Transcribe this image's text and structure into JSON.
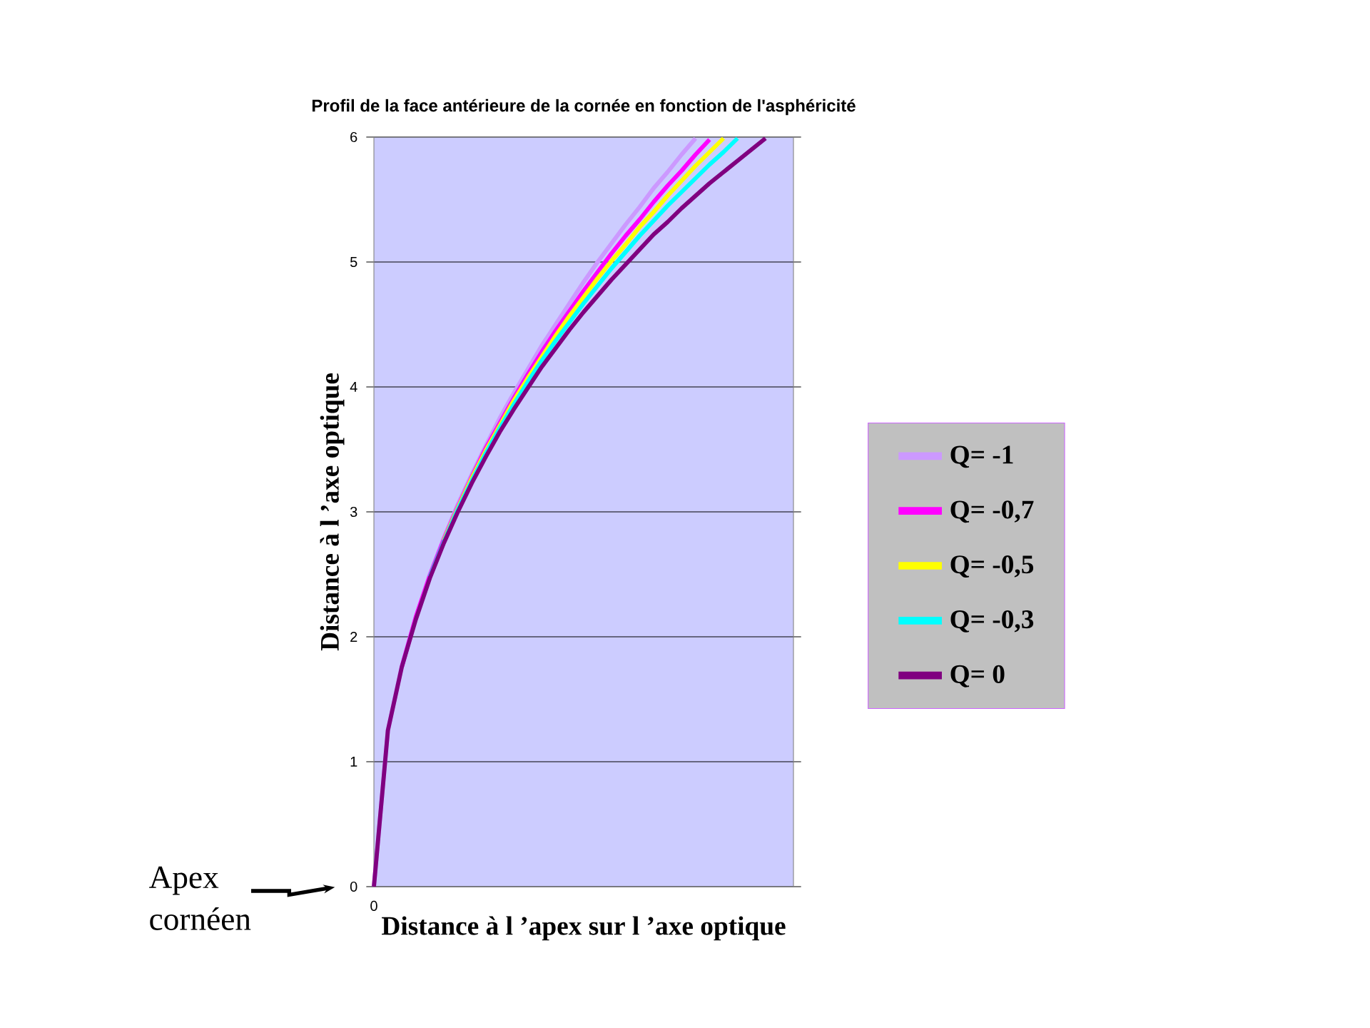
{
  "chart_data": {
    "type": "line",
    "title": "Profil de la face antérieure de la cornée en fonction de l'asphéricité",
    "xlabel": "Distance à l ’apex sur l ’axe optique",
    "ylabel": "Distance à l ’axe optique",
    "categories": [
      null,
      null,
      null,
      null,
      null,
      null,
      null,
      null,
      null,
      null,
      null,
      null,
      null,
      null,
      null,
      null,
      null,
      null,
      null,
      null,
      null,
      null,
      null,
      null,
      null,
      null,
      null,
      null,
      null,
      null,
      null
    ],
    "ylim": [
      0,
      6
    ],
    "yticks": [
      0,
      1,
      2,
      3,
      4,
      5,
      6
    ],
    "grid": "y",
    "legend": "right",
    "annotations": [
      "Apex cornéen",
      "0"
    ],
    "series": [
      {
        "name": "Q= -1",
        "color": "#cc99ff",
        "values": [
          0,
          1.25,
          1.77,
          2.16,
          2.5,
          2.79,
          3.06,
          3.3,
          3.53,
          3.75,
          3.95,
          4.14,
          4.33,
          4.5,
          4.67,
          4.84,
          5.0,
          5.15,
          5.3,
          5.44,
          5.59,
          5.72,
          5.86,
          5.99,
          null,
          null,
          null,
          null,
          null,
          null,
          null
        ]
      },
      {
        "name": "Q= -0,7",
        "color": "#ff00ff",
        "values": [
          null,
          null,
          1.76,
          2.16,
          2.49,
          2.78,
          3.04,
          3.28,
          3.51,
          3.71,
          3.91,
          4.1,
          4.28,
          4.45,
          4.61,
          4.77,
          4.92,
          5.07,
          5.21,
          5.34,
          5.48,
          5.61,
          5.73,
          5.86,
          5.98,
          null,
          null,
          null,
          null,
          null,
          null
        ]
      },
      {
        "name": "Q= -0,5",
        "color": "#ffff00",
        "values": [
          null,
          null,
          null,
          null,
          null,
          2.77,
          3.03,
          3.27,
          3.49,
          3.69,
          3.89,
          4.07,
          4.24,
          4.41,
          4.57,
          4.72,
          4.87,
          5.01,
          5.14,
          5.28,
          5.4,
          5.53,
          5.65,
          5.77,
          5.88,
          5.99,
          null,
          null,
          null,
          null,
          null
        ]
      },
      {
        "name": "Q= -0,3",
        "color": "#00ffff",
        "values": [
          null,
          null,
          null,
          null,
          2.48,
          2.76,
          3.02,
          3.25,
          3.47,
          3.67,
          3.86,
          4.04,
          4.21,
          4.37,
          4.52,
          4.67,
          4.81,
          4.95,
          5.08,
          5.21,
          5.33,
          5.45,
          5.56,
          5.67,
          5.78,
          5.88,
          5.99,
          null,
          null,
          null,
          null
        ]
      },
      {
        "name": "Q= 0",
        "color": "#800080",
        "values": [
          0,
          1.25,
          1.76,
          2.14,
          2.47,
          2.75,
          3.0,
          3.23,
          3.44,
          3.64,
          3.82,
          3.99,
          4.16,
          4.31,
          4.46,
          4.6,
          4.73,
          4.86,
          4.98,
          5.1,
          5.22,
          5.32,
          5.43,
          5.53,
          5.63,
          5.72,
          5.81,
          5.9,
          5.99,
          null,
          null
        ]
      }
    ]
  }
}
